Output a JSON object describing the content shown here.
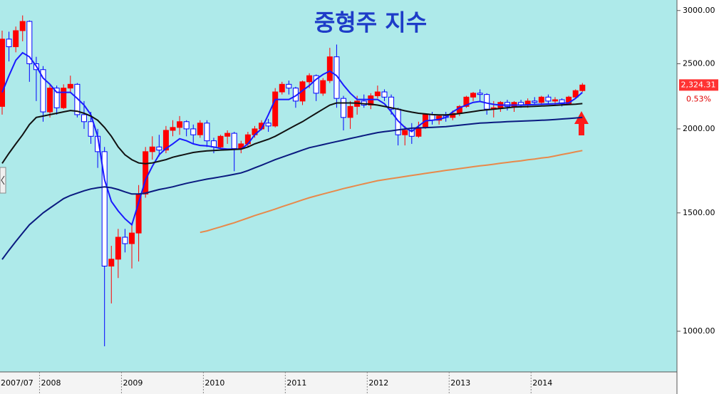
{
  "chart_data": {
    "type": "candlestick",
    "title": "중형주 지수",
    "categories": [
      "2007/07",
      null,
      null,
      null,
      null,
      null,
      "2008",
      null,
      null,
      null,
      null,
      null,
      null,
      null,
      null,
      null,
      null,
      null,
      "2009",
      null,
      null,
      null,
      null,
      null,
      null,
      null,
      null,
      null,
      null,
      null,
      "2010",
      null,
      null,
      null,
      null,
      null,
      null,
      null,
      null,
      null,
      null,
      null,
      "2011",
      null,
      null,
      null,
      null,
      null,
      null,
      null,
      null,
      null,
      null,
      null,
      "2012",
      null,
      null,
      null,
      null,
      null,
      null,
      null,
      null,
      null,
      null,
      null,
      "2013",
      null,
      null,
      null,
      null,
      null,
      null,
      null,
      null,
      null,
      null,
      null,
      "2014",
      null,
      null,
      null,
      null,
      null,
      null,
      null
    ],
    "open": [
      2160,
      2720,
      2650,
      2800,
      2890,
      2500,
      2450,
      2120,
      2300,
      2150,
      2300,
      2330,
      2100,
      2050,
      1950,
      1850,
      1250,
      1280,
      1380,
      1350,
      1400,
      1600,
      1850,
      1880,
      1860,
      1990,
      2010,
      2050,
      2000,
      1960,
      2040,
      1920,
      1880,
      1950,
      1970,
      1870,
      1900,
      1960,
      2000,
      2040,
      2020,
      2270,
      2330,
      2300,
      2200,
      2350,
      2400,
      2260,
      2360,
      2560,
      2220,
      2080,
      2160,
      2200,
      2170,
      2240,
      2270,
      2230,
      2140,
      1960,
      1990,
      1950,
      2010,
      2100,
      2060,
      2090,
      2080,
      2110,
      2160,
      2230,
      2260,
      2250,
      2140,
      2150,
      2190,
      2160,
      2190,
      2170,
      2200,
      2190,
      2230,
      2200,
      2210,
      2180,
      2230,
      2280
    ],
    "high": [
      2800,
      2790,
      2840,
      2950,
      2900,
      2560,
      2480,
      2330,
      2320,
      2330,
      2400,
      2340,
      2200,
      2120,
      2000,
      1880,
      1340,
      1420,
      1420,
      1450,
      1650,
      1880,
      1950,
      1960,
      2020,
      2060,
      2090,
      2060,
      2030,
      2060,
      2060,
      1940,
      1960,
      1990,
      1980,
      1920,
      1980,
      2020,
      2060,
      2070,
      2300,
      2350,
      2360,
      2310,
      2360,
      2420,
      2410,
      2380,
      2640,
      2670,
      2240,
      2200,
      2240,
      2250,
      2260,
      2320,
      2290,
      2250,
      2150,
      2020,
      2040,
      2050,
      2110,
      2120,
      2100,
      2120,
      2130,
      2170,
      2240,
      2270,
      2290,
      2260,
      2200,
      2200,
      2210,
      2200,
      2210,
      2220,
      2230,
      2240,
      2250,
      2230,
      2220,
      2240,
      2290,
      2340
    ],
    "low": [
      2100,
      2520,
      2600,
      2700,
      2350,
      2200,
      2050,
      2080,
      2100,
      2140,
      2270,
      2080,
      2000,
      1900,
      1750,
      950,
      1100,
      1200,
      1310,
      1240,
      1270,
      1580,
      1800,
      1820,
      1840,
      1950,
      1960,
      1950,
      1900,
      1940,
      1880,
      1840,
      1870,
      1900,
      1730,
      1840,
      1880,
      1940,
      1990,
      1980,
      2010,
      2250,
      2250,
      2150,
      2170,
      2300,
      2200,
      2240,
      2340,
      2150,
      1990,
      2000,
      2100,
      2150,
      2140,
      2220,
      2200,
      2100,
      1890,
      1890,
      1900,
      1940,
      2000,
      2030,
      2030,
      2050,
      2060,
      2090,
      2150,
      2200,
      2200,
      2100,
      2080,
      2120,
      2130,
      2120,
      2150,
      2150,
      2170,
      2170,
      2180,
      2170,
      2160,
      2170,
      2220,
      2270
    ],
    "close": [
      2720,
      2650,
      2800,
      2890,
      2500,
      2450,
      2120,
      2300,
      2150,
      2300,
      2330,
      2100,
      2050,
      1950,
      1850,
      1250,
      1280,
      1380,
      1350,
      1400,
      1600,
      1850,
      1880,
      1860,
      1990,
      2010,
      2050,
      2000,
      1960,
      2040,
      1920,
      1880,
      1950,
      1970,
      1870,
      1900,
      1960,
      2000,
      2040,
      2020,
      2270,
      2330,
      2300,
      2200,
      2350,
      2400,
      2260,
      2360,
      2560,
      2220,
      2080,
      2160,
      2200,
      2170,
      2240,
      2270,
      2230,
      2140,
      1960,
      1990,
      1950,
      2010,
      2100,
      2060,
      2090,
      2080,
      2110,
      2160,
      2230,
      2260,
      2250,
      2140,
      2150,
      2190,
      2160,
      2190,
      2170,
      2200,
      2190,
      2230,
      2200,
      2210,
      2180,
      2230,
      2280,
      2324.31
    ],
    "up_color": "#ff0000",
    "down_color": "#0000ff",
    "lines": [
      {
        "color": "#1a1aff",
        "values": [
          2267,
          2400,
          2530,
          2596,
          2560,
          2480,
          2380,
          2330,
          2267,
          2267,
          2267,
          2220,
          2170,
          2100,
          1950,
          1680,
          1560,
          1510,
          1470,
          1440,
          1554,
          1680,
          1760,
          1830,
          1870,
          1900,
          1934,
          1920,
          1900,
          1890,
          1887,
          1880,
          1870,
          1866,
          1866,
          1866,
          1900,
          1960,
          2000,
          2100,
          2212,
          2212,
          2212,
          2240,
          2280,
          2320,
          2370,
          2410,
          2438,
          2400,
          2324,
          2260,
          2212,
          2212,
          2212,
          2212,
          2180,
          2120,
          2056,
          2010,
          1982,
          2020,
          2056,
          2060,
          2066,
          2080,
          2120,
          2150,
          2170,
          2190,
          2197,
          2185,
          2175,
          2170,
          2170,
          2170,
          2170,
          2172,
          2174,
          2176,
          2178,
          2180,
          2184,
          2186,
          2220,
          2267
        ]
      },
      {
        "color": "#111111",
        "values": [
          1777,
          1840,
          1900,
          1960,
          2030,
          2080,
          2090,
          2100,
          2110,
          2120,
          2130,
          2125,
          2110,
          2090,
          2060,
          2010,
          1950,
          1880,
          1830,
          1800,
          1780,
          1775,
          1780,
          1790,
          1800,
          1815,
          1825,
          1835,
          1845,
          1850,
          1855,
          1857,
          1860,
          1862,
          1864,
          1866,
          1880,
          1900,
          1915,
          1930,
          1950,
          1975,
          2000,
          2025,
          2050,
          2080,
          2110,
          2140,
          2170,
          2186,
          2186,
          2186,
          2184,
          2180,
          2176,
          2170,
          2160,
          2150,
          2140,
          2128,
          2118,
          2110,
          2105,
          2100,
          2098,
          2098,
          2102,
          2108,
          2115,
          2122,
          2130,
          2135,
          2140,
          2145,
          2150,
          2155,
          2157,
          2159,
          2161,
          2163,
          2165,
          2168,
          2171,
          2174,
          2177,
          2181
        ]
      },
      {
        "color": "#0a1a80",
        "values": [
          1279,
          1320,
          1360,
          1400,
          1440,
          1470,
          1500,
          1525,
          1550,
          1575,
          1592,
          1605,
          1618,
          1628,
          1635,
          1640,
          1635,
          1625,
          1612,
          1600,
          1600,
          1605,
          1615,
          1625,
          1632,
          1640,
          1650,
          1660,
          1668,
          1676,
          1684,
          1690,
          1697,
          1704,
          1712,
          1720,
          1734,
          1750,
          1766,
          1783,
          1800,
          1815,
          1830,
          1845,
          1860,
          1875,
          1885,
          1895,
          1905,
          1915,
          1925,
          1935,
          1945,
          1955,
          1965,
          1975,
          1981,
          1987,
          1993,
          1999,
          2005,
          2007,
          2009,
          2011,
          2013,
          2015,
          2020,
          2025,
          2030,
          2035,
          2040,
          2042,
          2045,
          2047,
          2050,
          2052,
          2054,
          2056,
          2058,
          2060,
          2062,
          2065,
          2069,
          2072,
          2076,
          2080
        ]
      },
      {
        "color": "#e8894a",
        "values": [
          null,
          null,
          null,
          null,
          null,
          null,
          null,
          null,
          null,
          null,
          null,
          null,
          null,
          null,
          null,
          null,
          null,
          null,
          null,
          null,
          null,
          null,
          null,
          null,
          null,
          null,
          null,
          null,
          null,
          1403,
          1410,
          1420,
          1430,
          1440,
          1450,
          1462,
          1474,
          1486,
          1497,
          1508,
          1520,
          1532,
          1544,
          1556,
          1568,
          1580,
          1590,
          1600,
          1610,
          1620,
          1630,
          1639,
          1648,
          1657,
          1666,
          1675,
          1681,
          1687,
          1693,
          1699,
          1705,
          1711,
          1717,
          1723,
          1729,
          1735,
          1740,
          1746,
          1751,
          1757,
          1762,
          1767,
          1772,
          1778,
          1783,
          1788,
          1793,
          1799,
          1804,
          1810,
          1815,
          1823,
          1832,
          1840,
          1849,
          1857
        ]
      }
    ],
    "ylim": [
      870,
      3110
    ],
    "log_scale": true,
    "yticks": [
      {
        "value": 1000,
        "label": "1000.00"
      },
      {
        "value": 1500,
        "label": "1500.00"
      },
      {
        "value": 2000,
        "label": "2000.00"
      },
      {
        "value": 2500,
        "label": "2500.00"
      },
      {
        "value": 3000,
        "label": "3000.00"
      }
    ],
    "last_price": {
      "value": 2324.31,
      "label": "2,324.31"
    },
    "change": {
      "value": 0.53,
      "label": "0.53%"
    },
    "background": "#aeeaea"
  }
}
